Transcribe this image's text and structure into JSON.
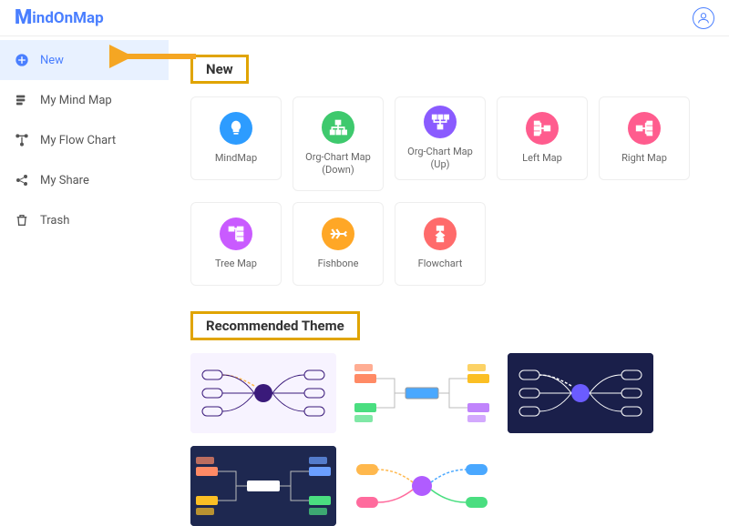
{
  "brand": {
    "initial": "M",
    "rest": "indOnMap"
  },
  "sidebar": {
    "items": [
      {
        "label": "New",
        "icon": "plus-circle",
        "active": true
      },
      {
        "label": "My Mind Map",
        "icon": "layers"
      },
      {
        "label": "My Flow Chart",
        "icon": "flow"
      },
      {
        "label": "My Share",
        "icon": "share"
      },
      {
        "label": "Trash",
        "icon": "trash"
      }
    ]
  },
  "sections": {
    "new": {
      "title": "New"
    },
    "recommended": {
      "title": "Recommended Theme"
    }
  },
  "templates": [
    {
      "label": "MindMap",
      "color": "#2d9cff",
      "icon": "bulb"
    },
    {
      "label": "Org-Chart Map (Down)",
      "color": "#3ec96d",
      "icon": "org-down"
    },
    {
      "label": "Org-Chart Map (Up)",
      "color": "#8a5bff",
      "icon": "org-up"
    },
    {
      "label": "Left Map",
      "color": "#ff5c8e",
      "icon": "left"
    },
    {
      "label": "Right Map",
      "color": "#ff5c8e",
      "icon": "right"
    },
    {
      "label": "Tree Map",
      "color": "#c95bff",
      "icon": "tree"
    },
    {
      "label": "Fishbone",
      "color": "#ffa726",
      "icon": "fish"
    },
    {
      "label": "Flowchart",
      "color": "#ff6b6b",
      "icon": "flowchart"
    }
  ],
  "themes": [
    {
      "bg": "#f7f3ff",
      "center": "#3a1a7a",
      "c1": "#ffb84d",
      "c2": "#ff6b9d",
      "c3": "#3a1a7a",
      "style": "outline"
    },
    {
      "bg": "#ffffff",
      "center": "#4aa8ff",
      "c1": "#ff8a65",
      "c2": "#4ade80",
      "c3": "#fbbf24",
      "c4": "#c084fc",
      "style": "blocks"
    },
    {
      "bg": "#1a1f4a",
      "center": "#6b5cff",
      "c1": "#ffffff",
      "c2": "#ffffff",
      "c3": "#ffffff",
      "style": "outline-dark"
    },
    {
      "bg": "#1e2850",
      "center": "#ffffff",
      "c1": "#ff8a65",
      "c2": "#fbbf24",
      "c3": "#6b9fff",
      "c4": "#4ade80",
      "style": "blocks-dark"
    },
    {
      "bg": "#ffffff",
      "center": "#b05cff",
      "c1": "#ffb84d",
      "c2": "#ff6b9d",
      "c3": "#4aa8ff",
      "c4": "#4ade80",
      "style": "radial"
    }
  ],
  "colors": {
    "primary": "#4a7fff",
    "highlight_border": "#e0a400",
    "arrow": "#f5a623"
  }
}
